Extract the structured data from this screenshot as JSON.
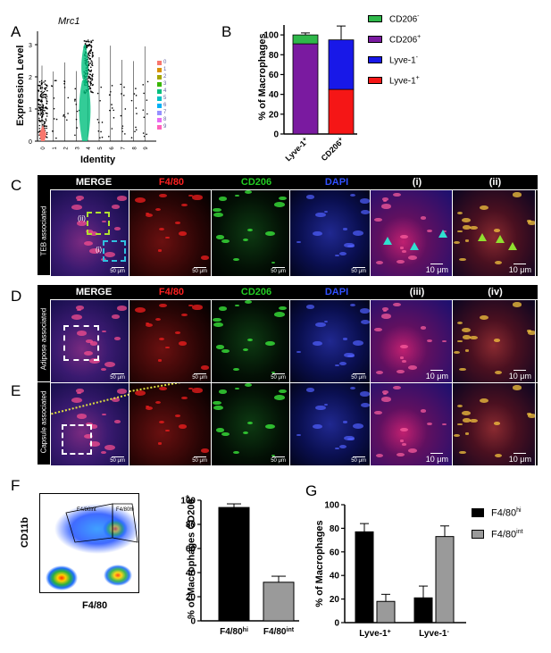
{
  "panels": {
    "A": {
      "label": "A",
      "title": "Mrc1",
      "ylabel": "Expression Level",
      "xlabel": "Identity",
      "clusters": [
        "0",
        "1",
        "2",
        "3",
        "4",
        "5",
        "6",
        "7",
        "8",
        "9"
      ],
      "yticks": [
        "0",
        "1",
        "2",
        "3"
      ],
      "legend": [
        "0",
        "1",
        "2",
        "3",
        "4",
        "5",
        "6",
        "7",
        "8",
        "9"
      ],
      "colors": [
        "#f8766d",
        "#d89000",
        "#a3a500",
        "#39b600",
        "#00bf7d",
        "#00bfc4",
        "#00b0f6",
        "#9590ff",
        "#e76bf3",
        "#ff62bc"
      ]
    },
    "B": {
      "label": "B",
      "ylabel": "% of Macrophages",
      "legend": [
        {
          "label": "CD206",
          "sup": "-",
          "color": "#2fb84a"
        },
        {
          "label": "CD206",
          "sup": "+",
          "color": "#7a1aa0"
        },
        {
          "label": "Lyve-1",
          "sup": "-",
          "color": "#1818e8"
        },
        {
          "label": "Lyve-1",
          "sup": "+",
          "color": "#f51616"
        }
      ]
    },
    "C": {
      "label": "C",
      "side_label": "TEB associated",
      "headers": [
        "MERGE",
        "F4/80",
        "CD206",
        "DAPI",
        "(i)",
        "(ii)"
      ],
      "inset_labels": [
        "(ii)",
        "(i)"
      ],
      "scalebars": [
        "50 μm",
        "50 μm",
        "50 μm",
        "50 μm",
        "10 μm",
        "10 μm"
      ]
    },
    "D": {
      "label": "D",
      "side_label": "Adipose associated",
      "headers": [
        "MERGE",
        "F4/80",
        "CD206",
        "DAPI",
        "(iii)",
        "(iv)"
      ],
      "scalebars": [
        "50 μm",
        "50 μm",
        "50 μm",
        "50 μm",
        "10 μm",
        "10 μm"
      ]
    },
    "E": {
      "label": "E",
      "side_label": "Capsule associated",
      "scalebars": [
        "50 μm",
        "50 μm",
        "50 μm",
        "50 μm",
        "10 μm",
        "10 μm"
      ]
    },
    "F": {
      "label": "F",
      "flow_xlabel": "F4/80",
      "flow_ylabel": "CD11b",
      "gates": [
        "F4/80int",
        "F4/80hi"
      ],
      "bar_ylabel": "% of Macrophages CD206",
      "bar_ylabel_sup": "+"
    },
    "G": {
      "label": "G",
      "ylabel": "% of Macrophages",
      "legend": [
        {
          "label": "F4/80",
          "sup": "hi",
          "color": "#000000"
        },
        {
          "label": "F4/80",
          "sup": "int",
          "color": "#9a9a9a"
        }
      ]
    }
  },
  "chart_data": [
    {
      "id": "B",
      "type": "bar",
      "stacked": true,
      "categories": [
        {
          "label": "Lyve-1",
          "sup": "+"
        },
        {
          "label": "CD206",
          "sup": "+"
        }
      ],
      "series": [
        {
          "name": "CD206+",
          "values": [
            91,
            null
          ],
          "color": "#7a1aa0"
        },
        {
          "name": "CD206-",
          "values": [
            9,
            null
          ],
          "color": "#2fb84a"
        },
        {
          "name": "Lyve-1+",
          "values": [
            null,
            45
          ],
          "color": "#f51616"
        },
        {
          "name": "Lyve-1-",
          "values": [
            null,
            50
          ],
          "color": "#1818e8"
        }
      ],
      "ylim": [
        0,
        110
      ],
      "yticks": [
        0,
        20,
        40,
        60,
        80,
        100
      ]
    },
    {
      "id": "F",
      "type": "bar",
      "categories": [
        {
          "label": "F4/80",
          "sup": "hi"
        },
        {
          "label": "F4/80",
          "sup": "int"
        }
      ],
      "values": [
        94,
        32
      ],
      "errors": [
        3,
        5
      ],
      "colors": [
        "#000000",
        "#9a9a9a"
      ],
      "ylim": [
        0,
        100
      ],
      "yticks": [
        0,
        20,
        40,
        60,
        80,
        100
      ]
    },
    {
      "id": "G",
      "type": "bar",
      "categories": [
        {
          "label": "Lyve-1",
          "sup": "+"
        },
        {
          "label": "Lyve-1",
          "sup": "-"
        }
      ],
      "series": [
        {
          "name": "F4/80hi",
          "values": [
            77,
            21
          ],
          "errors": [
            7,
            10
          ],
          "color": "#000000"
        },
        {
          "name": "F4/80int",
          "values": [
            18,
            73
          ],
          "errors": [
            6,
            9
          ],
          "color": "#9a9a9a"
        }
      ],
      "ylim": [
        0,
        100
      ],
      "yticks": [
        0,
        20,
        40,
        60,
        80,
        100
      ]
    }
  ]
}
